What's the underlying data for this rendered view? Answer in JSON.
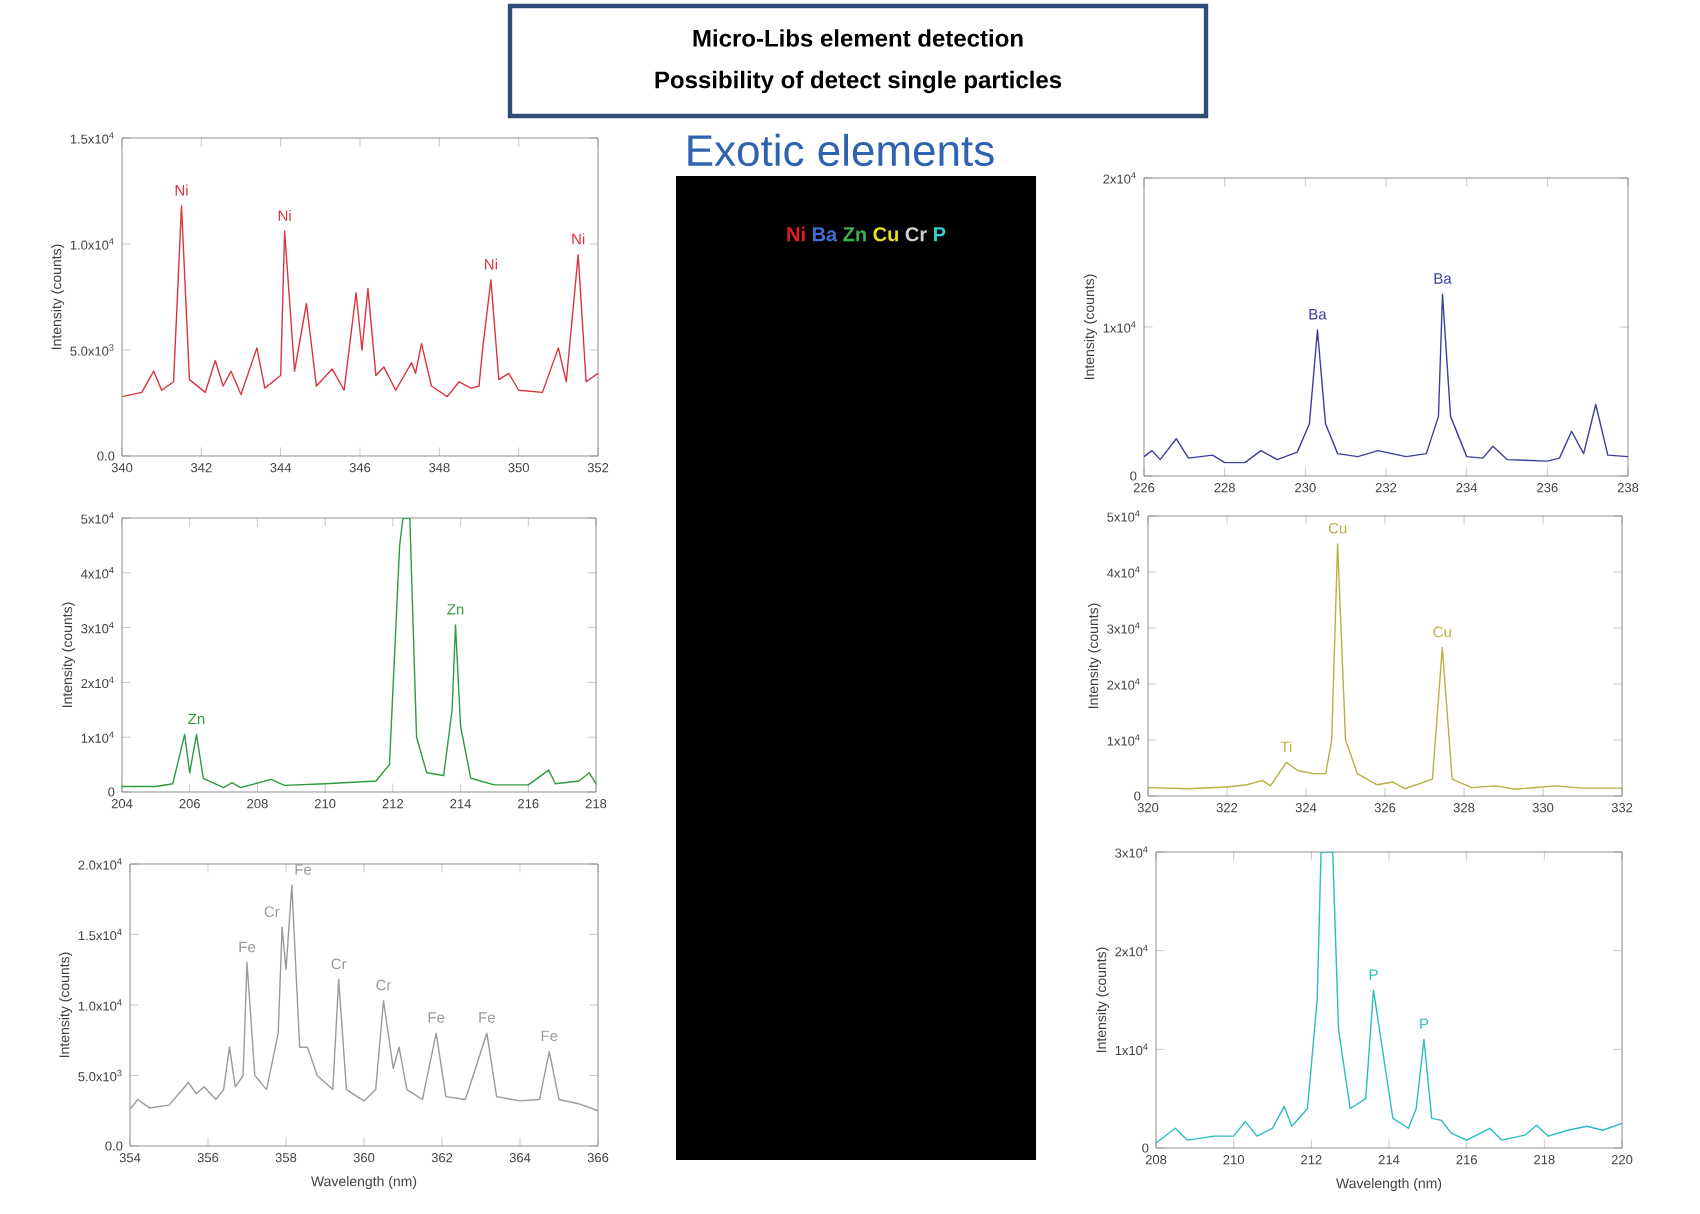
{
  "chart_data": [
    {
      "type": "other",
      "title": "Micro-Libs element detection",
      "subtitle": "Possibility of detect single particles",
      "annotations": [
        "Exotic elements"
      ],
      "categories": [
        "Ni",
        "Ba",
        "Zn",
        "Cu",
        "Cr",
        "P"
      ],
      "colors": [
        "#e02020",
        "#3f6fd0",
        "#3fb050",
        "#e8e020",
        "#d0d0d0",
        "#30d0d0"
      ]
    },
    {
      "type": "line",
      "ylabel": "Intensity (counts)",
      "xlim": [
        340,
        352
      ],
      "ylim": [
        0,
        15000
      ],
      "xticks": [
        340,
        342,
        344,
        346,
        348,
        350,
        352
      ],
      "yticks": [
        {
          "value": 0,
          "label": "0.0"
        },
        {
          "value": 5000,
          "label": "5.0x10$^{3}$"
        },
        {
          "value": 10000,
          "label": "1.0x10$^{4}$"
        },
        {
          "value": 15000,
          "label": "1.5x10$^{4}$"
        }
      ],
      "series": [
        {
          "color": "#d9343f",
          "x": [
            340,
            340.5,
            340.8,
            341.0,
            341.3,
            341.5,
            341.7,
            342.1,
            342.35,
            342.55,
            342.75,
            343.0,
            343.4,
            343.6,
            344.0,
            344.1,
            344.35,
            344.65,
            344.9,
            345.3,
            345.6,
            345.9,
            346.05,
            346.2,
            346.4,
            346.6,
            346.9,
            347.3,
            347.4,
            347.55,
            347.8,
            348.2,
            348.5,
            348.8,
            349.0,
            349.1,
            349.3,
            349.5,
            349.75,
            350.0,
            350.6,
            351.0,
            351.2,
            351.5,
            351.7,
            352
          ],
          "values": [
            2800,
            3000,
            4000,
            3100,
            3500,
            11800,
            3600,
            3000,
            4500,
            3300,
            4000,
            2900,
            5100,
            3200,
            3800,
            10600,
            4000,
            7200,
            3300,
            4100,
            3100,
            7700,
            5000,
            7900,
            3800,
            4200,
            3100,
            4400,
            3900,
            5300,
            3300,
            2800,
            3500,
            3200,
            3300,
            5200,
            8300,
            3600,
            3900,
            3100,
            3000,
            5100,
            3500,
            9500,
            3500,
            3900
          ]
        }
      ],
      "annotations": [
        {
          "text": "Ni",
          "x": 341.5,
          "y": 11800
        },
        {
          "text": "Ni",
          "x": 344.1,
          "y": 10600
        },
        {
          "text": "Ni",
          "x": 349.3,
          "y": 8300
        },
        {
          "text": "Ni",
          "x": 351.5,
          "y": 9500
        }
      ]
    },
    {
      "type": "line",
      "ylabel": "Intensity (counts)",
      "xlim": [
        226,
        238
      ],
      "ylim": [
        0,
        20000
      ],
      "xticks": [
        226,
        228,
        230,
        232,
        234,
        236,
        238
      ],
      "yticks": [
        0,
        {
          "value": 10000,
          "label": "1x10$^{4}$"
        },
        {
          "value": 20000,
          "label": "2x10$^{4}$"
        }
      ],
      "series": [
        {
          "color": "#3b3f9e",
          "x": [
            226,
            226.2,
            226.4,
            226.8,
            227.1,
            227.7,
            228.0,
            228.5,
            228.9,
            229.3,
            229.8,
            230.1,
            230.3,
            230.5,
            230.8,
            231.3,
            231.8,
            232.5,
            233.0,
            233.3,
            233.4,
            233.6,
            234.0,
            234.4,
            234.65,
            235.0,
            236.0,
            236.3,
            236.6,
            236.9,
            237.2,
            237.5,
            238
          ],
          "values": [
            1300,
            1700,
            1100,
            2500,
            1200,
            1400,
            900,
            900,
            1700,
            1100,
            1600,
            3500,
            9800,
            3500,
            1500,
            1300,
            1700,
            1300,
            1500,
            4000,
            12200,
            4000,
            1300,
            1200,
            2000,
            1100,
            1000,
            1200,
            3000,
            1500,
            4800,
            1400,
            1300
          ]
        }
      ],
      "annotations": [
        {
          "text": "Ba",
          "x": 230.3,
          "y": 9800
        },
        {
          "text": "Ba",
          "x": 233.4,
          "y": 12200
        }
      ]
    },
    {
      "type": "line",
      "ylabel": "Intensity (counts)",
      "xlim": [
        204,
        218
      ],
      "ylim": [
        0,
        50000
      ],
      "xticks": [
        204,
        206,
        208,
        210,
        212,
        214,
        216,
        218
      ],
      "yticks": [
        0,
        {
          "value": 10000,
          "label": "1x10$^{4}$"
        },
        {
          "value": 20000,
          "label": "2x10$^{4}$"
        },
        {
          "value": 30000,
          "label": "3x10$^{4}$"
        },
        {
          "value": 40000,
          "label": "4x10$^{4}$"
        },
        {
          "value": 50000,
          "label": "5x10$^{4}$"
        }
      ],
      "series": [
        {
          "color": "#2e9b3f",
          "x": [
            204,
            205,
            205.5,
            205.85,
            206.0,
            206.2,
            206.4,
            207,
            207.25,
            207.5,
            208.4,
            208.8,
            210,
            211.5,
            211.9,
            212.2,
            212.3,
            212.5,
            212.7,
            213.0,
            213.5,
            213.75,
            213.85,
            214.0,
            214.3,
            215,
            216,
            216.6,
            216.8,
            217.5,
            217.8,
            218
          ],
          "values": [
            1000,
            1000,
            1500,
            10500,
            3500,
            10500,
            2500,
            800,
            1700,
            800,
            2300,
            1200,
            1500,
            2000,
            5000,
            45000,
            50000,
            50000,
            10000,
            3500,
            3000,
            15000,
            30500,
            12000,
            2500,
            1300,
            1300,
            4000,
            1500,
            2000,
            3500,
            1500
          ]
        }
      ],
      "annotations": [
        {
          "text": "Zn",
          "x": 206.2,
          "y": 10500
        },
        {
          "text": "Zn",
          "x": 213.85,
          "y": 30500
        }
      ]
    },
    {
      "type": "line",
      "ylabel": "Intensity (counts)",
      "xlim": [
        320,
        332
      ],
      "ylim": [
        0,
        50000
      ],
      "xticks": [
        320,
        322,
        324,
        326,
        328,
        330,
        332
      ],
      "yticks": [
        0,
        {
          "value": 10000,
          "label": "1x10$^{4}$"
        },
        {
          "value": 20000,
          "label": "2x10$^{4}$"
        },
        {
          "value": 30000,
          "label": "3x10$^{4}$"
        },
        {
          "value": 40000,
          "label": "4x10$^{4}$"
        },
        {
          "value": 50000,
          "label": "5x10$^{4}$"
        }
      ],
      "series": [
        {
          "color": "#b8b040",
          "x": [
            320,
            321,
            322,
            322.5,
            322.9,
            323.1,
            323.5,
            323.8,
            324.2,
            324.5,
            324.65,
            324.8,
            325.0,
            325.3,
            325.8,
            326.2,
            326.5,
            327.2,
            327.45,
            327.7,
            328.2,
            328.8,
            329.3,
            330.3,
            331,
            332
          ],
          "values": [
            1500,
            1300,
            1600,
            2000,
            2800,
            1800,
            6000,
            4500,
            4000,
            4000,
            10000,
            45000,
            10000,
            4000,
            2000,
            2500,
            1300,
            3000,
            26500,
            3000,
            1500,
            1800,
            1200,
            1800,
            1400,
            1400
          ]
        }
      ],
      "annotations": [
        {
          "text": "Ti",
          "x": 323.5,
          "y": 6000
        },
        {
          "text": "Cu",
          "x": 324.8,
          "y": 45000
        },
        {
          "text": "Cu",
          "x": 327.45,
          "y": 26500
        }
      ]
    },
    {
      "type": "line",
      "xlabel": "Wavelength (nm)",
      "ylabel": "Intensity (counts)",
      "xlim": [
        354,
        366
      ],
      "ylim": [
        0,
        20000
      ],
      "xticks": [
        354,
        356,
        358,
        360,
        362,
        364,
        366
      ],
      "yticks": [
        {
          "value": 0,
          "label": "0.0"
        },
        {
          "value": 5000,
          "label": "5.0x10$^{3}$"
        },
        {
          "value": 10000,
          "label": "1.0x10$^{4}$"
        },
        {
          "value": 15000,
          "label": "1.5x10$^{4}$"
        },
        {
          "value": 20000,
          "label": "2.0x10$^{4}$"
        }
      ],
      "series": [
        {
          "color": "#9a9a9a",
          "x": [
            354,
            354.2,
            354.5,
            355,
            355.5,
            355.7,
            355.9,
            356.2,
            356.4,
            356.55,
            356.7,
            356.9,
            357.0,
            357.2,
            357.5,
            357.8,
            357.9,
            358.0,
            358.15,
            358.35,
            358.55,
            358.8,
            359.2,
            359.35,
            359.55,
            360.0,
            360.3,
            360.5,
            360.75,
            360.9,
            361.1,
            361.5,
            361.85,
            362.1,
            362.6,
            363.15,
            363.4,
            364.0,
            364.5,
            364.75,
            365.0,
            365.5,
            366
          ],
          "values": [
            2600,
            3300,
            2700,
            2900,
            4500,
            3700,
            4200,
            3300,
            4000,
            7000,
            4200,
            5000,
            13000,
            5000,
            4000,
            8000,
            15500,
            12500,
            18500,
            7000,
            7000,
            5000,
            4000,
            11800,
            4000,
            3200,
            4000,
            10300,
            5500,
            7000,
            4000,
            3300,
            8000,
            3500,
            3300,
            8000,
            3500,
            3200,
            3300,
            6700,
            3300,
            3000,
            2500
          ]
        }
      ],
      "annotations": [
        {
          "text": "Fe",
          "x": 357.0,
          "y": 13000
        },
        {
          "text": "Cr",
          "x": 357.9,
          "y": 15500
        },
        {
          "text": "Fe",
          "x": 358.15,
          "y": 18500
        },
        {
          "text": "Cr",
          "x": 359.35,
          "y": 11800
        },
        {
          "text": "Cr",
          "x": 360.5,
          "y": 10300
        },
        {
          "text": "Fe",
          "x": 361.85,
          "y": 8000
        },
        {
          "text": "Fe",
          "x": 363.15,
          "y": 8000
        },
        {
          "text": "Fe",
          "x": 364.75,
          "y": 6700
        }
      ]
    },
    {
      "type": "line",
      "xlabel": "Wavelength (nm)",
      "ylabel": "Intensity (counts)",
      "xlim": [
        208,
        220
      ],
      "ylim": [
        0,
        30000
      ],
      "xticks": [
        208,
        210,
        212,
        214,
        216,
        218,
        220
      ],
      "yticks": [
        0,
        {
          "value": 10000,
          "label": "1x10$^{4}$"
        },
        {
          "value": 20000,
          "label": "2x10$^{4}$"
        },
        {
          "value": 30000,
          "label": "3x10$^{4}$"
        }
      ],
      "series": [
        {
          "color": "#2bbcc0",
          "x": [
            208,
            208.5,
            208.8,
            209.5,
            210,
            210.3,
            210.6,
            211.0,
            211.3,
            211.5,
            211.9,
            212.15,
            212.25,
            212.55,
            212.7,
            213.0,
            213.4,
            213.6,
            213.85,
            214.1,
            214.5,
            214.7,
            214.9,
            215.1,
            215.35,
            215.6,
            216.0,
            216.6,
            216.9,
            217.5,
            217.8,
            218.1,
            218.6,
            219.1,
            219.5,
            220
          ],
          "values": [
            500,
            2000,
            800,
            1200,
            1200,
            2700,
            1200,
            2000,
            4200,
            2200,
            4000,
            15000,
            30000,
            30000,
            12000,
            4000,
            5000,
            16000,
            9500,
            3000,
            2000,
            4000,
            11000,
            3000,
            2800,
            1500,
            800,
            2000,
            800,
            1300,
            2300,
            1200,
            1800,
            2200,
            1800,
            2500
          ]
        }
      ],
      "annotations": [
        {
          "text": "P",
          "x": 213.6,
          "y": 16000
        },
        {
          "text": "P",
          "x": 214.9,
          "y": 11000
        }
      ]
    }
  ]
}
